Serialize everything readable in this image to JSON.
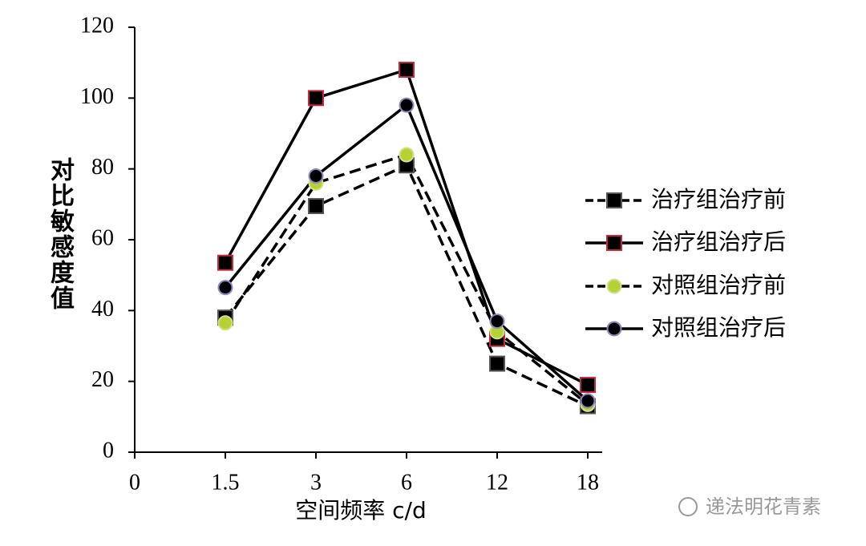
{
  "chart_data": {
    "type": "line",
    "y_label": "对比敏感度值",
    "x_label": "空间频率 c/d",
    "categories": [
      "0",
      "1.5",
      "3",
      "6",
      "12",
      "18"
    ],
    "series": [
      {
        "name": "治疗组治疗前",
        "marker": "square",
        "color": "#000000",
        "edgecolor": "#555555",
        "linestyle": "dashed",
        "values": [
          null,
          38,
          69.5,
          81,
          25,
          13
        ]
      },
      {
        "name": "治疗组治疗后",
        "marker": "square",
        "color": "#000000",
        "edgecolor": "#c8283c",
        "linestyle": "solid",
        "values": [
          null,
          53.5,
          100,
          108,
          32,
          19
        ]
      },
      {
        "name": "对照组治疗前",
        "marker": "circle",
        "color": "#b5d234",
        "edgecolor": "#d2e08a",
        "linestyle": "dashed",
        "values": [
          null,
          36.5,
          76,
          84,
          34,
          13.5
        ]
      },
      {
        "name": "对照组治疗后",
        "marker": "circle",
        "color": "#000000",
        "edgecolor": "#8c88c0",
        "linestyle": "solid",
        "values": [
          null,
          46.5,
          78,
          98,
          37,
          14.5
        ]
      }
    ],
    "ylim": [
      0,
      120
    ],
    "yticks": [
      0,
      20,
      40,
      60,
      80,
      100,
      120
    ],
    "grid": false,
    "legend": "right",
    "watermark": "递法明花青素"
  }
}
